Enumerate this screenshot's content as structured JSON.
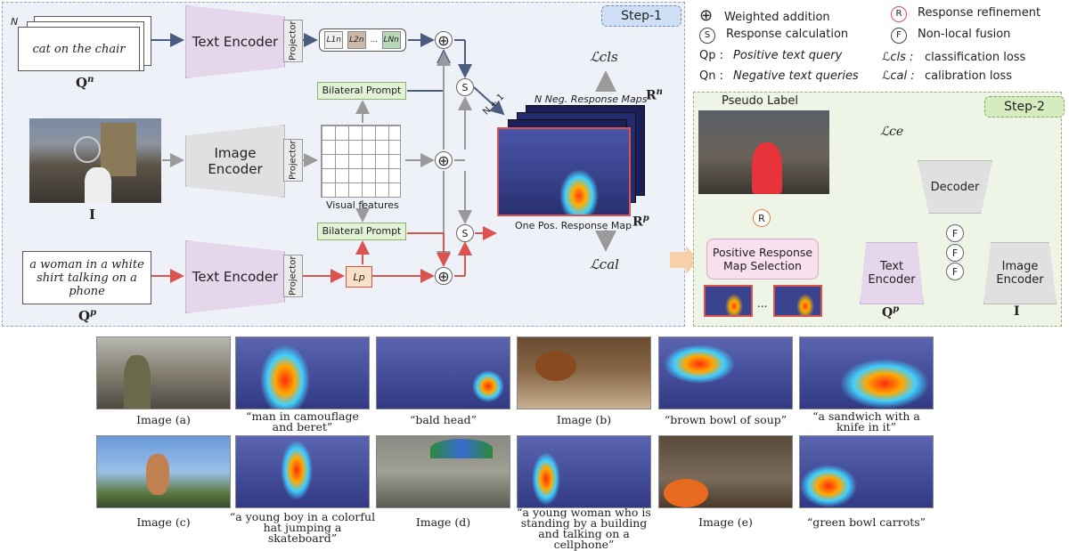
{
  "step1": {
    "label": "Step-1",
    "neg_query_text": "cat on the chair",
    "neg_query_stack_label": "N",
    "neg_query_symbol": "Q",
    "neg_query_sup": "n",
    "text_encoder_label": "Text Encoder",
    "projector_label": "Projector",
    "neg_prompt_tokens": [
      "L1n",
      "L2n",
      "...",
      "LNn"
    ],
    "bilateral_prompt_label": "Bilateral Prompt",
    "image_encoder_label": "Image Encoder",
    "image_symbol": "I",
    "visual_features_label": "Visual features",
    "pos_query_text": "a woman in a white shirt talking on a phone",
    "pos_query_symbol": "Q",
    "pos_query_sup": "p",
    "pos_prompt_token": "Lp",
    "neg_maps_label": "N Neg. Response Maps",
    "neg_maps_symbol": "R",
    "neg_maps_sup": "n",
    "stack_count_label": "N + 1",
    "pos_map_label": "One Pos. Response Map",
    "pos_map_symbol": "R",
    "pos_map_sup": "p",
    "loss_cls": "ℒcls",
    "loss_cal": "ℒcal",
    "circle_s": "S"
  },
  "legend": {
    "items": [
      {
        "symbol": "⊕",
        "text": "Weighted addition"
      },
      {
        "symbol": "S",
        "text": "Response calculation"
      },
      {
        "symbol": "Qp :",
        "text": "Positive text query"
      },
      {
        "symbol": "Qn :",
        "text": "Negative text queries"
      },
      {
        "symbol": "R",
        "text": "Response refinement"
      },
      {
        "symbol": "F",
        "text": "Non-local fusion"
      },
      {
        "symbol": "ℒcls :",
        "text": "classification loss"
      },
      {
        "symbol": "ℒcal :",
        "text": "calibration loss"
      }
    ]
  },
  "step2": {
    "label": "Step-2",
    "pseudo_label": "Pseudo Label",
    "loss_ce": "ℒce",
    "decoder_label": "Decoder",
    "selection_label": "Positive Response Map Selection",
    "ellipsis": "...",
    "text_encoder_label": "Text Encoder",
    "image_encoder_label": "Image Encoder",
    "query_symbol": "Q",
    "query_sup": "p",
    "image_symbol": "I",
    "circle_r": "R",
    "circle_f": "F"
  },
  "examples": {
    "row1": [
      "Image (a)",
      "“man in camouflage and beret”",
      "“bald head”",
      "Image (b)",
      "“brown bowl of soup”",
      "“a sandwich with a knife in it”"
    ],
    "row2": [
      "Image (c)",
      "“a young boy in a colorful hat jumping a skateboard”",
      "Image (d)",
      "“a young woman who is standing by a building and talking on a cellphone”",
      "Image (e)",
      "“green bowl carrots”"
    ]
  },
  "colors": {
    "panel1_bg": "#eef1f8",
    "panel2_bg": "#eef4e6",
    "arrow_neg": "#4a5d80",
    "arrow_pos": "#d9534f",
    "arrow_img": "#9a9a9a"
  }
}
